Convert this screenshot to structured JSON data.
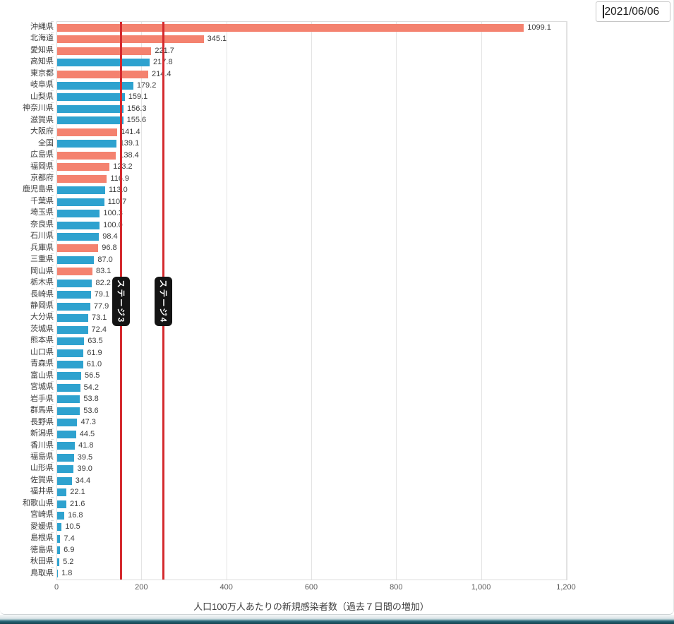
{
  "window": {
    "date_value": "2021/06/06"
  },
  "chart_data": {
    "type": "bar",
    "orientation": "horizontal",
    "title": "",
    "xlabel": "人口100万人あたりの新規感染者数（過去７日間の増加）",
    "ylabel": "",
    "xlim": [
      0,
      1200
    ],
    "x_tick_values": [
      0,
      200,
      400,
      600,
      800,
      1000,
      1200
    ],
    "x_tick_labels": [
      "0",
      "200",
      "400",
      "600",
      "800",
      "1,000",
      "1,200"
    ],
    "grid": "vertical",
    "legend": "none",
    "colors": {
      "alert": "#f4826f",
      "normal": "#2ea2cf",
      "reference_line": "#d42a2e",
      "badge_bg": "#141414",
      "badge_text": "#ffffff"
    },
    "reference_lines": [
      {
        "value": 150,
        "label": "ステージ3"
      },
      {
        "value": 250,
        "label": "ステージ4"
      }
    ],
    "bars": [
      {
        "label": "沖縄県",
        "value": 1099.1,
        "group": "alert"
      },
      {
        "label": "北海道",
        "value": 345.1,
        "group": "alert"
      },
      {
        "label": "愛知県",
        "value": 221.7,
        "group": "alert"
      },
      {
        "label": "高知県",
        "value": 217.8,
        "group": "normal"
      },
      {
        "label": "東京都",
        "value": 214.4,
        "group": "alert"
      },
      {
        "label": "岐阜県",
        "value": 179.2,
        "group": "normal"
      },
      {
        "label": "山梨県",
        "value": 159.1,
        "group": "normal"
      },
      {
        "label": "神奈川県",
        "value": 156.3,
        "group": "normal"
      },
      {
        "label": "滋賀県",
        "value": 155.6,
        "group": "normal"
      },
      {
        "label": "大阪府",
        "value": 141.4,
        "group": "alert"
      },
      {
        "label": "全国",
        "value": 139.1,
        "group": "normal"
      },
      {
        "label": "広島県",
        "value": 138.4,
        "group": "alert"
      },
      {
        "label": "福岡県",
        "value": 123.2,
        "group": "alert"
      },
      {
        "label": "京都府",
        "value": 116.9,
        "group": "alert"
      },
      {
        "label": "鹿児島県",
        "value": 113.0,
        "group": "normal"
      },
      {
        "label": "千葉県",
        "value": 110.7,
        "group": "normal"
      },
      {
        "label": "埼玉県",
        "value": 100.3,
        "group": "normal"
      },
      {
        "label": "奈良県",
        "value": 100.0,
        "group": "normal"
      },
      {
        "label": "石川県",
        "value": 98.4,
        "group": "normal"
      },
      {
        "label": "兵庫県",
        "value": 96.8,
        "group": "alert"
      },
      {
        "label": "三重県",
        "value": 87.0,
        "group": "normal"
      },
      {
        "label": "岡山県",
        "value": 83.1,
        "group": "alert"
      },
      {
        "label": "栃木県",
        "value": 82.2,
        "group": "normal"
      },
      {
        "label": "長崎県",
        "value": 79.1,
        "group": "normal"
      },
      {
        "label": "静岡県",
        "value": 77.9,
        "group": "normal"
      },
      {
        "label": "大分県",
        "value": 73.1,
        "group": "normal"
      },
      {
        "label": "茨城県",
        "value": 72.4,
        "group": "normal"
      },
      {
        "label": "熊本県",
        "value": 63.5,
        "group": "normal"
      },
      {
        "label": "山口県",
        "value": 61.9,
        "group": "normal"
      },
      {
        "label": "青森県",
        "value": 61.0,
        "group": "normal"
      },
      {
        "label": "富山県",
        "value": 56.5,
        "group": "normal"
      },
      {
        "label": "宮城県",
        "value": 54.2,
        "group": "normal"
      },
      {
        "label": "岩手県",
        "value": 53.8,
        "group": "normal"
      },
      {
        "label": "群馬県",
        "value": 53.6,
        "group": "normal"
      },
      {
        "label": "長野県",
        "value": 47.3,
        "group": "normal"
      },
      {
        "label": "新潟県",
        "value": 44.5,
        "group": "normal"
      },
      {
        "label": "香川県",
        "value": 41.8,
        "group": "normal"
      },
      {
        "label": "福島県",
        "value": 39.5,
        "group": "normal"
      },
      {
        "label": "山形県",
        "value": 39.0,
        "group": "normal"
      },
      {
        "label": "佐賀県",
        "value": 34.4,
        "group": "normal"
      },
      {
        "label": "福井県",
        "value": 22.1,
        "group": "normal"
      },
      {
        "label": "和歌山県",
        "value": 21.6,
        "group": "normal"
      },
      {
        "label": "宮崎県",
        "value": 16.8,
        "group": "normal"
      },
      {
        "label": "愛媛県",
        "value": 10.5,
        "group": "normal"
      },
      {
        "label": "島根県",
        "value": 7.4,
        "group": "normal"
      },
      {
        "label": "徳島県",
        "value": 6.9,
        "group": "normal"
      },
      {
        "label": "秋田県",
        "value": 5.2,
        "group": "normal"
      },
      {
        "label": "鳥取県",
        "value": 1.8,
        "group": "normal"
      }
    ]
  }
}
